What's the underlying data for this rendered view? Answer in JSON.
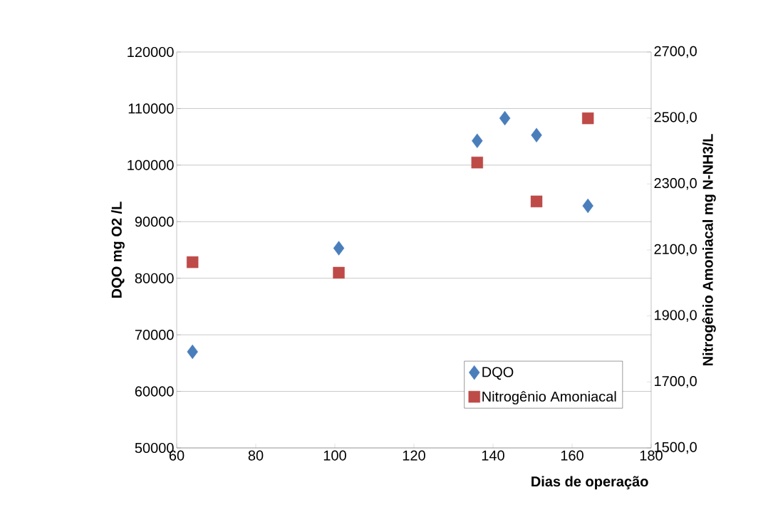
{
  "chart_data": {
    "type": "scatter",
    "xlabel": "Dias de operação",
    "ylabel": "DQO mg O2 /L",
    "y2label": "Nitrogênio Amoniacal mg N-NH3/L",
    "xlim": [
      60,
      180
    ],
    "xticks": [
      60,
      80,
      100,
      120,
      140,
      160,
      180
    ],
    "ylim": [
      50000,
      120000
    ],
    "yticks": [
      50000,
      60000,
      70000,
      80000,
      90000,
      100000,
      110000,
      120000
    ],
    "y2lim": [
      1500,
      2700
    ],
    "y2ticks": [
      {
        "value": 1500,
        "label": "1500,0"
      },
      {
        "value": 1700,
        "label": "1700,0"
      },
      {
        "value": 1900,
        "label": "1900,0"
      },
      {
        "value": 2100,
        "label": "2100,0"
      },
      {
        "value": 2300,
        "label": "2300,0"
      },
      {
        "value": 2500,
        "label": "2500,0"
      },
      {
        "value": 2700,
        "label": "2700,0"
      }
    ],
    "grid": "y",
    "legend": "bottom right",
    "series": [
      {
        "name": "DQO",
        "color": "#4a7ebb",
        "marker": "diamond",
        "x": [
          64,
          101,
          136,
          143,
          151,
          164
        ],
        "values": [
          67000,
          85300,
          104300,
          108300,
          105300,
          92800
        ]
      },
      {
        "name": "Nitrogênio Amoniacal",
        "color": "#be4b48",
        "marker": "square",
        "axis": "y2",
        "x": [
          64,
          101,
          136,
          151,
          164
        ],
        "values": [
          2063,
          2031,
          2365,
          2247,
          2499
        ]
      }
    ]
  }
}
